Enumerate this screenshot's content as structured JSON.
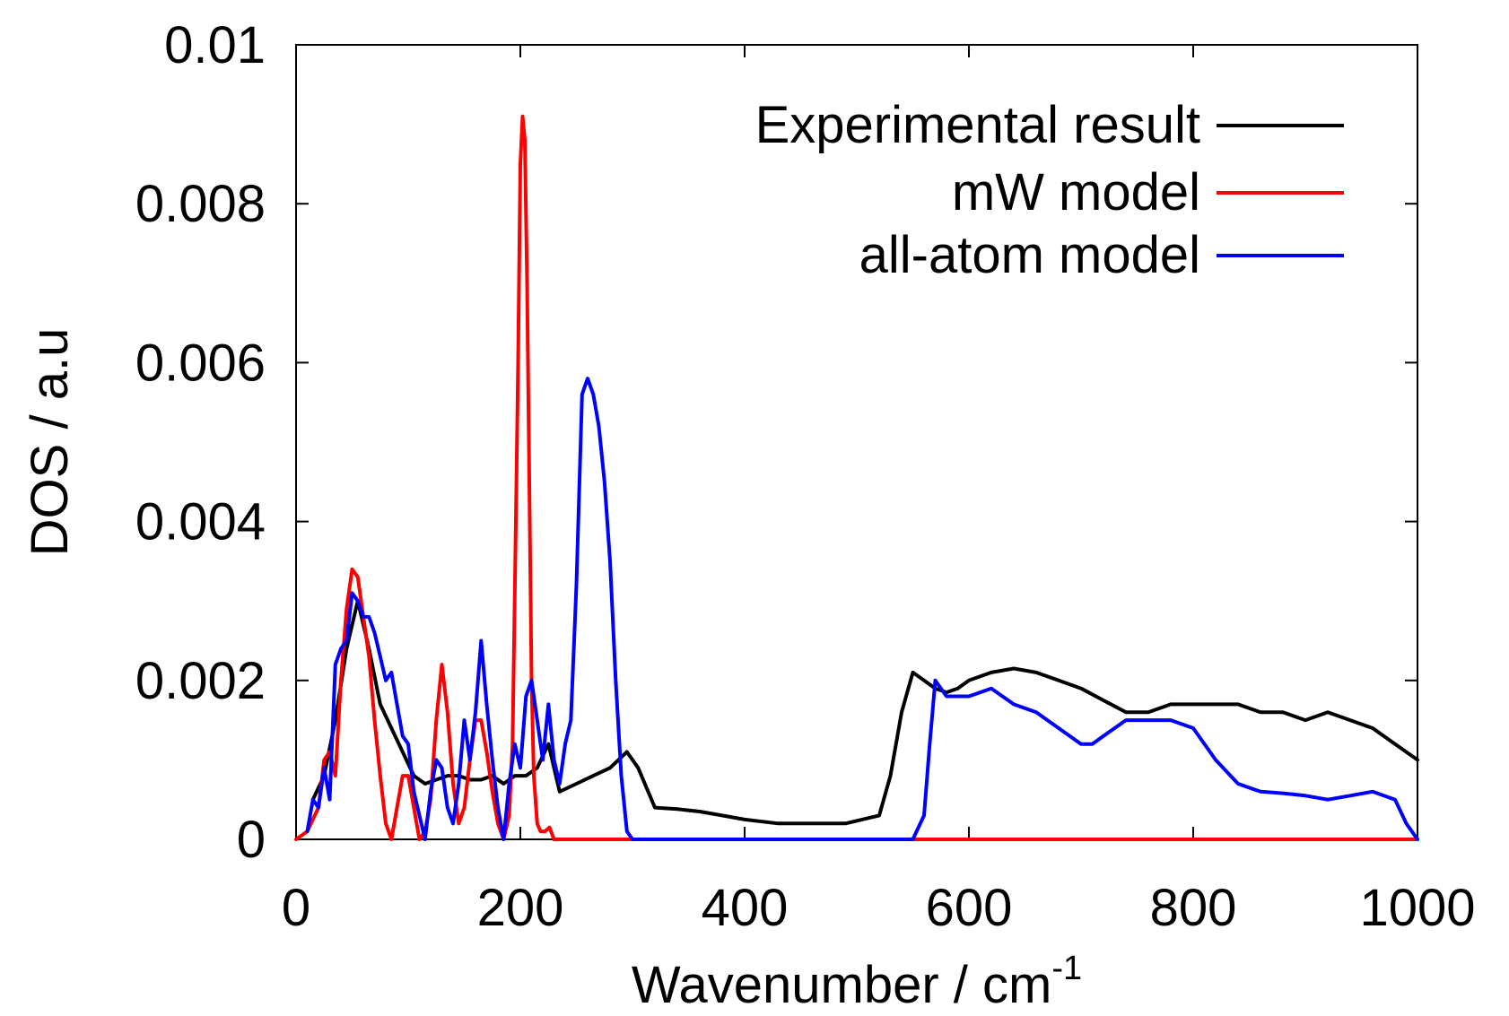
{
  "chart_data": {
    "type": "line",
    "title": "",
    "xlabel": "Wavenumber / cm",
    "xlabel_superscript": "-1",
    "ylabel": "DOS / a.u",
    "xlim": [
      0,
      1000
    ],
    "ylim": [
      0,
      0.01
    ],
    "xticks": [
      0,
      200,
      400,
      600,
      800,
      1000
    ],
    "xtick_labels": [
      "0",
      "200",
      "400",
      "600",
      "800",
      "1000"
    ],
    "yticks": [
      0,
      0.002,
      0.004,
      0.006,
      0.008,
      0.01
    ],
    "ytick_labels": [
      "0",
      "0.002",
      "0.004",
      "0.006",
      "0.008",
      "0.01"
    ],
    "grid": false,
    "legend_position": "top-right",
    "series": [
      {
        "name": "Experimental result",
        "color": "#000000",
        "x": [
          15,
          25,
          35,
          45,
          55,
          65,
          75,
          85,
          95,
          105,
          115,
          125,
          135,
          145,
          155,
          165,
          175,
          185,
          195,
          205,
          215,
          225,
          235,
          250,
          265,
          280,
          295,
          305,
          320,
          340,
          360,
          380,
          400,
          430,
          460,
          490,
          520,
          530,
          540,
          550,
          560,
          570,
          580,
          590,
          600,
          620,
          640,
          660,
          680,
          700,
          720,
          740,
          760,
          780,
          800,
          820,
          840,
          860,
          880,
          900,
          920,
          940,
          960,
          980,
          1000
        ],
        "y": [
          0.0005,
          0.0008,
          0.0015,
          0.0024,
          0.003,
          0.0024,
          0.0017,
          0.0014,
          0.0011,
          0.0008,
          0.0007,
          0.00075,
          0.0008,
          0.0008,
          0.00075,
          0.00075,
          0.0008,
          0.0007,
          0.0008,
          0.0008,
          0.0009,
          0.0012,
          0.0006,
          0.0007,
          0.0008,
          0.0009,
          0.0011,
          0.0009,
          0.0004,
          0.00038,
          0.00035,
          0.0003,
          0.00025,
          0.0002,
          0.0002,
          0.0002,
          0.0003,
          0.0008,
          0.0016,
          0.0021,
          0.002,
          0.0019,
          0.00185,
          0.0019,
          0.002,
          0.0021,
          0.00215,
          0.0021,
          0.002,
          0.0019,
          0.00175,
          0.0016,
          0.0016,
          0.0017,
          0.0017,
          0.0017,
          0.0017,
          0.0016,
          0.0016,
          0.0015,
          0.0016,
          0.0015,
          0.0014,
          0.0012,
          0.001
        ]
      },
      {
        "name": "mW model",
        "color": "#ff0000",
        "x": [
          0,
          10,
          20,
          25,
          30,
          35,
          40,
          45,
          50,
          55,
          60,
          65,
          70,
          75,
          80,
          85,
          90,
          95,
          100,
          105,
          110,
          115,
          120,
          125,
          130,
          135,
          140,
          145,
          150,
          155,
          160,
          165,
          170,
          175,
          180,
          185,
          190,
          193,
          196,
          198,
          200,
          202,
          204,
          206,
          208,
          210,
          212,
          215,
          218,
          222,
          226,
          230,
          235,
          240,
          300,
          400,
          500,
          600,
          700,
          800,
          900,
          1000
        ],
        "y": [
          0,
          0.0001,
          0.0004,
          0.001,
          0.0011,
          0.0008,
          0.002,
          0.0029,
          0.0034,
          0.0033,
          0.0028,
          0.0023,
          0.0015,
          0.0008,
          0.0002,
          0,
          0.0004,
          0.0008,
          0.0008,
          0.0004,
          0,
          0.0001,
          0.0005,
          0.0015,
          0.0022,
          0.0016,
          0.0007,
          0.0002,
          0.0004,
          0.001,
          0.0015,
          0.0015,
          0.0011,
          0.0006,
          0.0002,
          0,
          0.0003,
          0.0012,
          0.004,
          0.006,
          0.0085,
          0.0091,
          0.0088,
          0.007,
          0.0045,
          0.002,
          0.0008,
          0.0002,
          0.0001,
          0.0001,
          0.00015,
          0,
          0,
          0,
          0,
          0,
          0,
          0,
          0,
          0,
          0,
          0
        ]
      },
      {
        "name": "all-atom model",
        "color": "#0000ff",
        "x": [
          10,
          15,
          20,
          25,
          30,
          35,
          40,
          45,
          50,
          55,
          60,
          65,
          70,
          75,
          80,
          85,
          90,
          95,
          100,
          105,
          110,
          115,
          120,
          125,
          130,
          135,
          140,
          145,
          150,
          155,
          160,
          165,
          170,
          175,
          180,
          185,
          190,
          195,
          200,
          205,
          210,
          215,
          220,
          225,
          230,
          235,
          240,
          245,
          250,
          255,
          260,
          265,
          270,
          275,
          280,
          285,
          290,
          295,
          300,
          350,
          400,
          450,
          500,
          540,
          550,
          560,
          565,
          570,
          580,
          600,
          620,
          640,
          660,
          680,
          700,
          710,
          720,
          740,
          760,
          780,
          800,
          820,
          840,
          860,
          880,
          900,
          920,
          940,
          960,
          980,
          990,
          1000
        ],
        "y": [
          0.0001,
          0.0005,
          0.0004,
          0.0009,
          0.0005,
          0.0022,
          0.0024,
          0.0025,
          0.0031,
          0.003,
          0.0028,
          0.0028,
          0.0026,
          0.0023,
          0.002,
          0.0021,
          0.0017,
          0.0013,
          0.0012,
          0.0006,
          0.0003,
          0,
          0.0006,
          0.001,
          0.0009,
          0.0004,
          0.0002,
          0.0007,
          0.0015,
          0.001,
          0.0016,
          0.0025,
          0.0017,
          0.001,
          0.0004,
          0,
          0.0007,
          0.0012,
          0.0009,
          0.0018,
          0.002,
          0.0015,
          0.001,
          0.0017,
          0.001,
          0.0007,
          0.0012,
          0.0015,
          0.0032,
          0.0056,
          0.0058,
          0.0056,
          0.0052,
          0.0045,
          0.0035,
          0.002,
          0.0008,
          0.0001,
          0,
          0,
          0,
          0,
          0,
          0,
          0,
          0.0003,
          0.0012,
          0.002,
          0.0018,
          0.0018,
          0.0019,
          0.0017,
          0.0016,
          0.0014,
          0.0012,
          0.0012,
          0.0013,
          0.0015,
          0.0015,
          0.0015,
          0.0014,
          0.001,
          0.0007,
          0.0006,
          0.00058,
          0.00055,
          0.0005,
          0.00055,
          0.0006,
          0.0005,
          0.0002,
          0
        ]
      }
    ]
  }
}
